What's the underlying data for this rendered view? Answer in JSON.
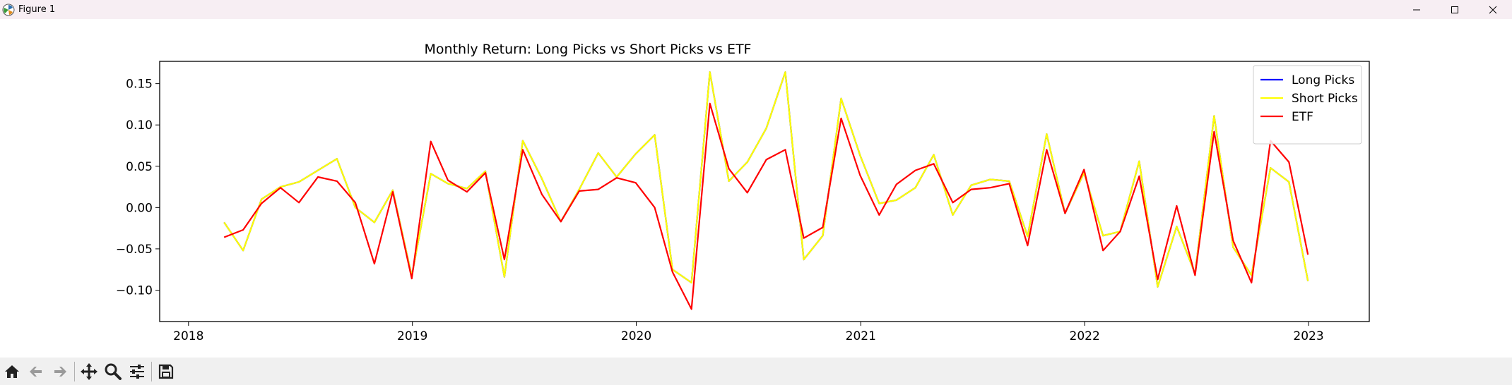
{
  "window": {
    "title": "Figure 1"
  },
  "toolbar": {
    "buttons": [
      "home-icon",
      "back-icon",
      "forward-icon",
      "pan-icon",
      "zoom-icon",
      "configure-icon",
      "save-icon"
    ]
  },
  "colors": {
    "long": "#0000ff",
    "short": "#ffff00",
    "etf": "#ff0000",
    "titlebar": "#f7eef3",
    "toolbar": "#f0f0f0"
  },
  "chart_data": {
    "type": "line",
    "title": "Monthly Return: Long Picks vs Short Picks vs ETF",
    "xlabel": "",
    "ylabel": "",
    "xlim": [
      "2017-11-15",
      "2023-04-10"
    ],
    "ylim": [
      -0.138,
      0.177
    ],
    "x_ticks": [
      "2018",
      "2019",
      "2020",
      "2021",
      "2022",
      "2023"
    ],
    "y_ticks": [
      "0.15",
      "0.10",
      "0.05",
      "0.00",
      "−0.05",
      "−0.10"
    ],
    "y_tick_values": [
      0.15,
      0.1,
      0.05,
      0.0,
      -0.05,
      -0.1
    ],
    "grid": false,
    "legend_position": "top-right",
    "x": [
      "2018-02-28",
      "2018-03-31",
      "2018-04-30",
      "2018-05-31",
      "2018-06-30",
      "2018-07-31",
      "2018-08-31",
      "2018-09-30",
      "2018-10-31",
      "2018-11-30",
      "2018-12-31",
      "2019-01-31",
      "2019-02-28",
      "2019-03-31",
      "2019-04-30",
      "2019-05-31",
      "2019-06-30",
      "2019-07-31",
      "2019-08-31",
      "2019-09-30",
      "2019-10-31",
      "2019-11-30",
      "2019-12-31",
      "2020-01-31",
      "2020-02-29",
      "2020-03-31",
      "2020-04-30",
      "2020-05-31",
      "2020-06-30",
      "2020-07-31",
      "2020-08-31",
      "2020-09-30",
      "2020-10-31",
      "2020-11-30",
      "2020-12-31",
      "2021-01-31",
      "2021-02-28",
      "2021-03-31",
      "2021-04-30",
      "2021-05-31",
      "2021-06-30",
      "2021-07-31",
      "2021-08-31",
      "2021-09-30",
      "2021-10-31",
      "2021-11-30",
      "2021-12-31",
      "2022-01-31",
      "2022-02-28",
      "2022-03-31",
      "2022-04-30",
      "2022-05-31",
      "2022-06-30",
      "2022-07-31",
      "2022-08-31",
      "2022-09-30",
      "2022-10-31",
      "2022-11-30",
      "2022-12-31"
    ],
    "series": [
      {
        "name": "Long Picks",
        "color": "#0000ff",
        "values": [
          -0.018,
          -0.052,
          0.01,
          0.025,
          0.031,
          0.045,
          0.059,
          0.0,
          -0.018,
          0.021,
          -0.083,
          0.041,
          0.029,
          0.023,
          0.044,
          -0.084,
          0.081,
          0.035,
          -0.017,
          0.022,
          0.066,
          0.037,
          0.065,
          0.088,
          -0.075,
          -0.091,
          0.164,
          0.032,
          0.055,
          0.096,
          0.164,
          -0.063,
          -0.034,
          0.132,
          0.063,
          0.005,
          0.009,
          0.024,
          0.064,
          -0.009,
          0.027,
          0.034,
          0.032,
          -0.035,
          0.089,
          -0.007,
          0.042,
          -0.034,
          -0.029,
          0.056,
          -0.096,
          -0.023,
          -0.08,
          0.111,
          -0.048,
          -0.082,
          0.048,
          0.031,
          -0.089
        ]
      },
      {
        "name": "Short Picks",
        "color": "#ffff00",
        "values": [
          -0.018,
          -0.052,
          0.01,
          0.025,
          0.031,
          0.045,
          0.059,
          0.0,
          -0.018,
          0.021,
          -0.083,
          0.041,
          0.029,
          0.023,
          0.044,
          -0.084,
          0.081,
          0.035,
          -0.017,
          0.022,
          0.066,
          0.037,
          0.065,
          0.088,
          -0.075,
          -0.091,
          0.164,
          0.032,
          0.055,
          0.096,
          0.164,
          -0.063,
          -0.034,
          0.132,
          0.063,
          0.005,
          0.009,
          0.024,
          0.064,
          -0.009,
          0.027,
          0.034,
          0.032,
          -0.035,
          0.089,
          -0.007,
          0.042,
          -0.034,
          -0.029,
          0.056,
          -0.096,
          -0.023,
          -0.08,
          0.111,
          -0.048,
          -0.082,
          0.048,
          0.031,
          -0.089
        ]
      },
      {
        "name": "ETF",
        "color": "#ff0000",
        "values": [
          -0.036,
          -0.027,
          0.005,
          0.024,
          0.006,
          0.037,
          0.032,
          0.006,
          -0.068,
          0.019,
          -0.086,
          0.08,
          0.033,
          0.019,
          0.042,
          -0.063,
          0.07,
          0.016,
          -0.017,
          0.02,
          0.022,
          0.036,
          0.03,
          0.0,
          -0.078,
          -0.123,
          0.126,
          0.047,
          0.018,
          0.058,
          0.07,
          -0.037,
          -0.024,
          0.108,
          0.039,
          -0.009,
          0.028,
          0.045,
          0.053,
          0.006,
          0.022,
          0.024,
          0.029,
          -0.046,
          0.07,
          -0.007,
          0.046,
          -0.052,
          -0.029,
          0.038,
          -0.087,
          0.002,
          -0.082,
          0.092,
          -0.04,
          -0.091,
          0.081,
          0.055,
          -0.057
        ]
      }
    ]
  }
}
